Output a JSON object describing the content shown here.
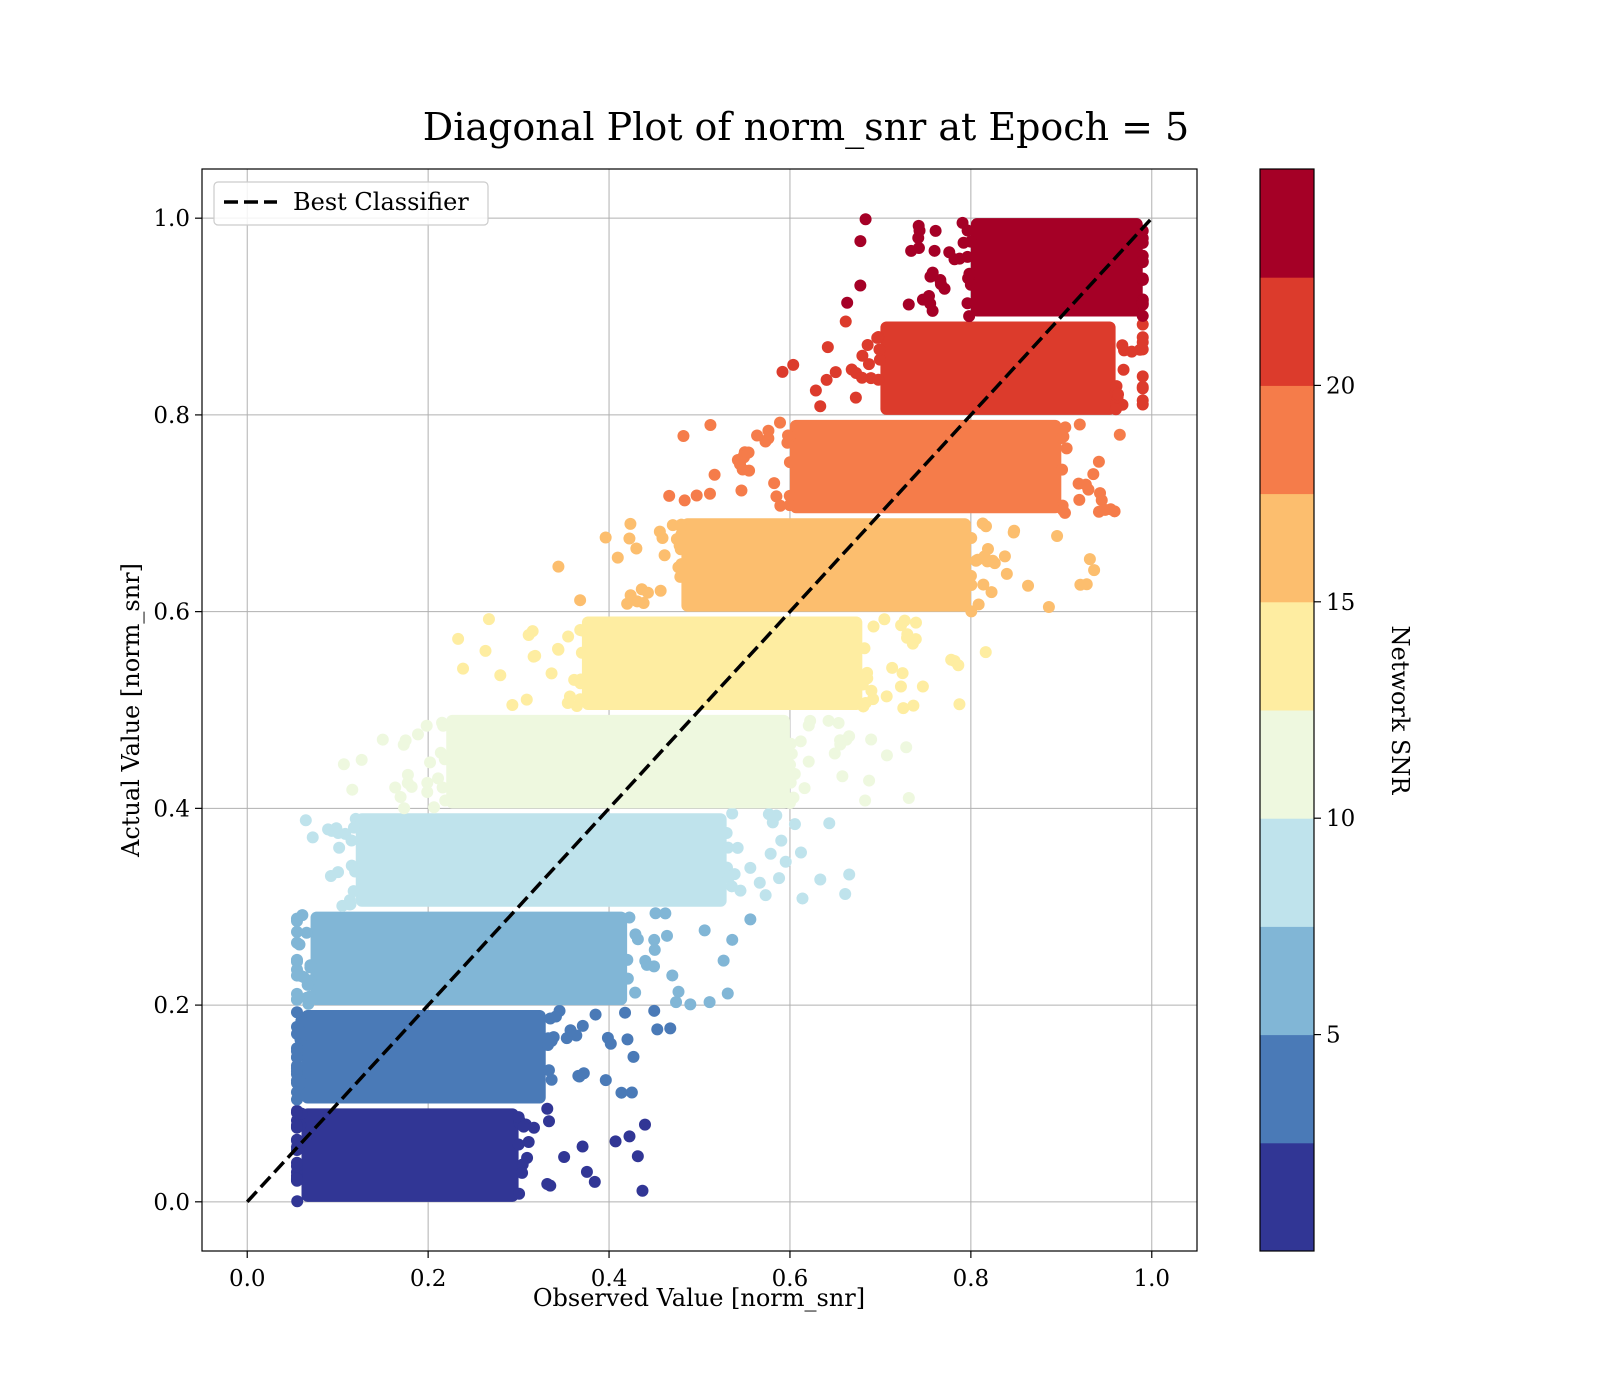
{
  "chart_data": {
    "type": "scatter",
    "title": "Diagonal Plot of norm_snr at Epoch = 5",
    "xlabel": "Observed Value [norm_snr]",
    "ylabel": "Actual Value [norm_snr]",
    "xlim": [
      -0.05,
      1.05
    ],
    "ylim": [
      -0.05,
      1.05
    ],
    "grid": true,
    "x_ticks": [
      "0.0",
      "0.2",
      "0.4",
      "0.6",
      "0.8",
      "1.0"
    ],
    "y_ticks": [
      "0.0",
      "0.2",
      "0.4",
      "0.6",
      "0.8",
      "1.0"
    ],
    "legend": {
      "position": "upper left",
      "entries": [
        {
          "label": "Best Classifier",
          "style": "dashed",
          "color": "#000000"
        }
      ]
    },
    "reference_line": {
      "label": "Best Classifier",
      "x": [
        0.0,
        1.0
      ],
      "y": [
        0.0,
        1.0
      ],
      "style": "dashed",
      "color": "#000000"
    },
    "scatter_bands": [
      {
        "snr_range": [
          0,
          2.5
        ],
        "y_range": [
          0.0,
          0.095
        ],
        "x_core": [
          0.06,
          0.3
        ],
        "color": "#313695"
      },
      {
        "snr_range": [
          2.5,
          5
        ],
        "y_range": [
          0.1,
          0.195
        ],
        "x_core": [
          0.06,
          0.33
        ],
        "color": "#4a7ab7"
      },
      {
        "snr_range": [
          5,
          7.5
        ],
        "y_range": [
          0.2,
          0.295
        ],
        "x_core": [
          0.07,
          0.42
        ],
        "color": "#81b6d6"
      },
      {
        "snr_range": [
          7.5,
          10
        ],
        "y_range": [
          0.3,
          0.395
        ],
        "x_core": [
          0.12,
          0.53
        ],
        "color": "#bfe3ec"
      },
      {
        "snr_range": [
          10,
          12.5
        ],
        "y_range": [
          0.4,
          0.495
        ],
        "x_core": [
          0.22,
          0.6
        ],
        "color": "#eef8df"
      },
      {
        "snr_range": [
          12.5,
          15
        ],
        "y_range": [
          0.5,
          0.595
        ],
        "x_core": [
          0.37,
          0.68
        ],
        "color": "#feeda1"
      },
      {
        "snr_range": [
          15,
          17.5
        ],
        "y_range": [
          0.6,
          0.695
        ],
        "x_core": [
          0.48,
          0.8
        ],
        "color": "#fcbe6e"
      },
      {
        "snr_range": [
          17.5,
          20
        ],
        "y_range": [
          0.7,
          0.795
        ],
        "x_core": [
          0.6,
          0.9
        ],
        "color": "#f57c4a"
      },
      {
        "snr_range": [
          20,
          22.5
        ],
        "y_range": [
          0.8,
          0.895
        ],
        "x_core": [
          0.7,
          0.96
        ],
        "color": "#dc3b2c"
      },
      {
        "snr_range": [
          22.5,
          25
        ],
        "y_range": [
          0.9,
          1.0
        ],
        "x_core": [
          0.8,
          0.99
        ],
        "color": "#a50026"
      }
    ],
    "colorbar": {
      "label": "Network SNR",
      "range": [
        0,
        25
      ],
      "ticks": [
        "5",
        "10",
        "15",
        "20"
      ],
      "tick_values": [
        5,
        10,
        15,
        20
      ],
      "colors": [
        "#313695",
        "#4a7ab7",
        "#81b6d6",
        "#bfe3ec",
        "#eef8df",
        "#feeda1",
        "#fcbe6e",
        "#f57c4a",
        "#dc3b2c",
        "#a50026"
      ]
    }
  }
}
